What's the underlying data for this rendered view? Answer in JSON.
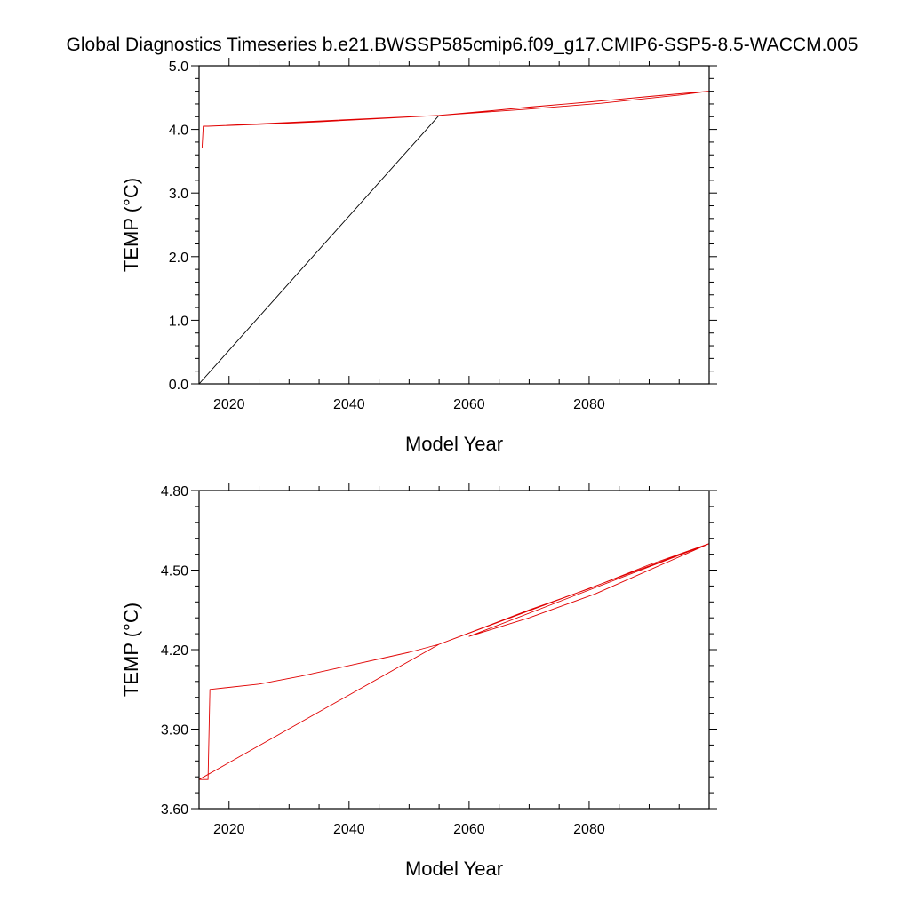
{
  "title": "Global Diagnostics Timeseries b.e21.BWSSP585cmip6.f09_g17.CMIP6-SSP5-8.5-WACCM.005",
  "colors": {
    "series_black": "#000000",
    "series_red": "#e00000",
    "axis": "#000000",
    "background": "#ffffff"
  },
  "chart_data": [
    {
      "type": "line",
      "title": "",
      "xlabel": "Model Year",
      "ylabel": "TEMP (°C)",
      "xlim": [
        2015,
        2100
      ],
      "ylim": [
        0.0,
        5.0
      ],
      "xticks": [
        2020,
        2040,
        2060,
        2080
      ],
      "xtick_labels": [
        "2020",
        "2040",
        "2060",
        "2080"
      ],
      "yticks": [
        0.0,
        1.0,
        2.0,
        3.0,
        4.0,
        5.0
      ],
      "ytick_labels": [
        "0.0",
        "1.0",
        "2.0",
        "3.0",
        "4.0",
        "5.0"
      ],
      "series": [
        {
          "name": "ref",
          "color": "#000000",
          "x": [
            2015,
            2055
          ],
          "y": [
            0.0,
            4.22
          ]
        },
        {
          "name": "case",
          "color": "#e00000",
          "x": [
            2015.5,
            2015.7,
            2016.5,
            2055,
            2100,
            2055,
            2016.5,
            2025,
            2035,
            2045,
            2055,
            2060,
            2070,
            2080,
            2090,
            2100,
            2055,
            2070,
            2082,
            2095,
            2100
          ],
          "y": [
            3.71,
            4.05,
            4.05,
            4.22,
            4.6,
            4.22,
            4.05,
            4.08,
            4.12,
            4.17,
            4.22,
            4.26,
            4.35,
            4.43,
            4.52,
            4.6,
            4.22,
            4.32,
            4.41,
            4.54,
            4.6
          ]
        }
      ]
    },
    {
      "type": "line",
      "title": "",
      "xlabel": "Model Year",
      "ylabel": "TEMP (°C)",
      "xlim": [
        2015,
        2100
      ],
      "ylim": [
        3.6,
        4.8
      ],
      "xticks": [
        2020,
        2040,
        2060,
        2080
      ],
      "xtick_labels": [
        "2020",
        "2040",
        "2060",
        "2080"
      ],
      "yticks": [
        3.6,
        3.9,
        4.2,
        4.5,
        4.8
      ],
      "ytick_labels": [
        "3.60",
        "3.90",
        "4.20",
        "4.50",
        "4.80"
      ],
      "series": [
        {
          "name": "case",
          "color": "#e00000",
          "x": [
            2015,
            2016.5,
            2016.8,
            2025,
            2032,
            2038,
            2046,
            2050,
            2055,
            2062,
            2070,
            2080,
            2090,
            2100,
            2060,
            2070,
            2081,
            2094,
            2100,
            2055,
            2015
          ],
          "y": [
            3.71,
            3.71,
            4.05,
            4.07,
            4.1,
            4.13,
            4.17,
            4.19,
            4.22,
            4.28,
            4.35,
            4.43,
            4.52,
            4.6,
            4.25,
            4.32,
            4.41,
            4.54,
            4.6,
            4.22,
            3.71
          ]
        }
      ]
    }
  ]
}
